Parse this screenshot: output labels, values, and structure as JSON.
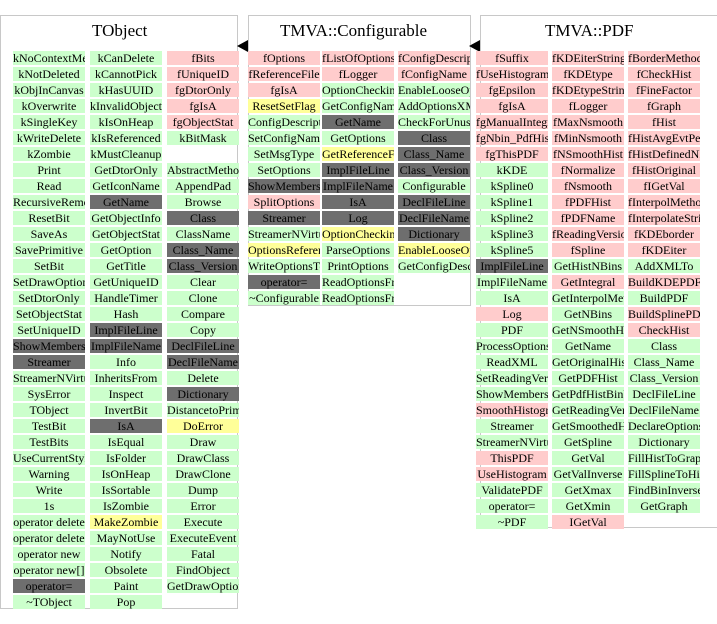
{
  "classes": [
    {
      "id": "tobject",
      "title": "TObject",
      "columns": [
        [
          {
            "t": "kNoContextMenu",
            "c": "g"
          },
          {
            "t": "kNotDeleted",
            "c": "g"
          },
          {
            "t": "kObjInCanvas",
            "c": "g"
          },
          {
            "t": "kOverwrite",
            "c": "g"
          },
          {
            "t": "kSingleKey",
            "c": "g"
          },
          {
            "t": "kWriteDelete",
            "c": "g"
          },
          {
            "t": "kZombie",
            "c": "g"
          },
          {
            "t": "Print",
            "c": "g"
          },
          {
            "t": "Read",
            "c": "g"
          },
          {
            "t": "RecursiveRemove",
            "c": "g"
          },
          {
            "t": "ResetBit",
            "c": "g"
          },
          {
            "t": "SaveAs",
            "c": "g"
          },
          {
            "t": "SavePrimitive",
            "c": "g"
          },
          {
            "t": "SetBit",
            "c": "g"
          },
          {
            "t": "SetDrawOption",
            "c": "g"
          },
          {
            "t": "SetDtorOnly",
            "c": "g"
          },
          {
            "t": "SetObjectStat",
            "c": "g"
          },
          {
            "t": "SetUniqueID",
            "c": "g"
          },
          {
            "t": "ShowMembers",
            "c": "k"
          },
          {
            "t": "Streamer",
            "c": "k"
          },
          {
            "t": "StreamerNVirtual",
            "c": "g"
          },
          {
            "t": "SysError",
            "c": "g"
          },
          {
            "t": "TObject",
            "c": "g"
          },
          {
            "t": "TestBit",
            "c": "g"
          },
          {
            "t": "TestBits",
            "c": "g"
          },
          {
            "t": "UseCurrentStyle",
            "c": "g"
          },
          {
            "t": "Warning",
            "c": "g"
          },
          {
            "t": "Write",
            "c": "g"
          },
          {
            "t": "1s",
            "c": "g"
          },
          {
            "t": "operator delete",
            "c": "g"
          },
          {
            "t": "operator delete[]",
            "c": "g"
          },
          {
            "t": "operator new",
            "c": "g"
          },
          {
            "t": "operator new[]",
            "c": "g"
          },
          {
            "t": "operator=",
            "c": "k"
          },
          {
            "t": "~TObject",
            "c": "g"
          }
        ],
        [
          {
            "t": "kCanDelete",
            "c": "g"
          },
          {
            "t": "kCannotPick",
            "c": "g"
          },
          {
            "t": "kHasUUID",
            "c": "g"
          },
          {
            "t": "kInvalidObject",
            "c": "g"
          },
          {
            "t": "kIsOnHeap",
            "c": "g"
          },
          {
            "t": "kIsReferenced",
            "c": "g"
          },
          {
            "t": "kMustCleanup",
            "c": "g"
          },
          {
            "t": "GetDtorOnly",
            "c": "g"
          },
          {
            "t": "GetIconName",
            "c": "g"
          },
          {
            "t": "GetName",
            "c": "k"
          },
          {
            "t": "GetObjectInfo",
            "c": "g"
          },
          {
            "t": "GetObjectStat",
            "c": "g"
          },
          {
            "t": "GetOption",
            "c": "g"
          },
          {
            "t": "GetTitle",
            "c": "g"
          },
          {
            "t": "GetUniqueID",
            "c": "g"
          },
          {
            "t": "HandleTimer",
            "c": "g"
          },
          {
            "t": "Hash",
            "c": "g"
          },
          {
            "t": "ImplFileLine",
            "c": "k"
          },
          {
            "t": "ImplFileName",
            "c": "k"
          },
          {
            "t": "Info",
            "c": "g"
          },
          {
            "t": "InheritsFrom",
            "c": "g"
          },
          {
            "t": "Inspect",
            "c": "g"
          },
          {
            "t": "InvertBit",
            "c": "g"
          },
          {
            "t": "IsA",
            "c": "k"
          },
          {
            "t": "IsEqual",
            "c": "g"
          },
          {
            "t": "IsFolder",
            "c": "g"
          },
          {
            "t": "IsOnHeap",
            "c": "g"
          },
          {
            "t": "IsSortable",
            "c": "g"
          },
          {
            "t": "IsZombie",
            "c": "g"
          },
          {
            "t": "MakeZombie",
            "c": "y"
          },
          {
            "t": "MayNotUse",
            "c": "g"
          },
          {
            "t": "Notify",
            "c": "g"
          },
          {
            "t": "Obsolete",
            "c": "g"
          },
          {
            "t": "Paint",
            "c": "g"
          },
          {
            "t": "Pop",
            "c": "g"
          }
        ],
        [
          {
            "t": "fBits",
            "c": "r"
          },
          {
            "t": "fUniqueID",
            "c": "r"
          },
          {
            "t": "fgDtorOnly",
            "c": "r"
          },
          {
            "t": "fgIsA",
            "c": "r"
          },
          {
            "t": "fgObjectStat",
            "c": "r"
          },
          {
            "t": "kBitMask",
            "c": "g"
          },
          {
            "t": "",
            "c": "n"
          },
          {
            "t": "AbstractMethod",
            "c": "g"
          },
          {
            "t": "AppendPad",
            "c": "g"
          },
          {
            "t": "Browse",
            "c": "g"
          },
          {
            "t": "Class",
            "c": "k"
          },
          {
            "t": "ClassName",
            "c": "g"
          },
          {
            "t": "Class_Name",
            "c": "k"
          },
          {
            "t": "Class_Version",
            "c": "k"
          },
          {
            "t": "Clear",
            "c": "g"
          },
          {
            "t": "Clone",
            "c": "g"
          },
          {
            "t": "Compare",
            "c": "g"
          },
          {
            "t": "Copy",
            "c": "g"
          },
          {
            "t": "DeclFileLine",
            "c": "k"
          },
          {
            "t": "DeclFileName",
            "c": "k"
          },
          {
            "t": "Delete",
            "c": "g"
          },
          {
            "t": "Dictionary",
            "c": "k"
          },
          {
            "t": "DistancetoPrimitive",
            "c": "g"
          },
          {
            "t": "DoError",
            "c": "y"
          },
          {
            "t": "Draw",
            "c": "g"
          },
          {
            "t": "DrawClass",
            "c": "g"
          },
          {
            "t": "DrawClone",
            "c": "g"
          },
          {
            "t": "Dump",
            "c": "g"
          },
          {
            "t": "Error",
            "c": "g"
          },
          {
            "t": "Execute",
            "c": "g"
          },
          {
            "t": "ExecuteEvent",
            "c": "g"
          },
          {
            "t": "Fatal",
            "c": "g"
          },
          {
            "t": "FindObject",
            "c": "g"
          },
          {
            "t": "GetDrawOption",
            "c": "g"
          }
        ]
      ]
    },
    {
      "id": "configurable",
      "title": "TMVA::Configurable",
      "columns": [
        [
          {
            "t": "fOptions",
            "c": "r"
          },
          {
            "t": "fReferenceFile",
            "c": "r"
          },
          {
            "t": "fgIsA",
            "c": "r"
          },
          {
            "t": "ResetSetFlag",
            "c": "y"
          },
          {
            "t": "ConfigDescription",
            "c": "g"
          },
          {
            "t": "SetConfigName",
            "c": "g"
          },
          {
            "t": "SetMsgType",
            "c": "g"
          },
          {
            "t": "SetOptions",
            "c": "g"
          },
          {
            "t": "ShowMembers",
            "c": "k"
          },
          {
            "t": "SplitOptions",
            "c": "r"
          },
          {
            "t": "Streamer",
            "c": "k"
          },
          {
            "t": "StreamerNVirtual",
            "c": "g"
          },
          {
            "t": "OptionsReferenceFile",
            "c": "y"
          },
          {
            "t": "WriteOptionsToStream",
            "c": "g"
          },
          {
            "t": "operator=",
            "c": "k"
          },
          {
            "t": "~Configurable",
            "c": "g"
          }
        ],
        [
          {
            "t": "fListOfOptions",
            "c": "r"
          },
          {
            "t": "fLogger",
            "c": "r"
          },
          {
            "t": "OptionChecking",
            "c": "g"
          },
          {
            "t": "GetConfigName",
            "c": "g"
          },
          {
            "t": "GetName",
            "c": "k"
          },
          {
            "t": "GetOptions",
            "c": "g"
          },
          {
            "t": "GetReferenceFile",
            "c": "y"
          },
          {
            "t": "ImplFileLine",
            "c": "k"
          },
          {
            "t": "ImplFileName",
            "c": "k"
          },
          {
            "t": "IsA",
            "c": "k"
          },
          {
            "t": "Log",
            "c": "k"
          },
          {
            "t": "OptionChecking",
            "c": "y"
          },
          {
            "t": "ParseOptions",
            "c": "g"
          },
          {
            "t": "PrintOptions",
            "c": "g"
          },
          {
            "t": "ReadOptionsFromStream",
            "c": "g"
          },
          {
            "t": "ReadOptionsFromXML",
            "c": "g"
          }
        ],
        [
          {
            "t": "fConfigDescription",
            "c": "r"
          },
          {
            "t": "fConfigName",
            "c": "r"
          },
          {
            "t": "EnableLooseOptions",
            "c": "g"
          },
          {
            "t": "AddOptionsXMLTo",
            "c": "g"
          },
          {
            "t": "CheckForUnusedOptions",
            "c": "g"
          },
          {
            "t": "Class",
            "c": "k"
          },
          {
            "t": "Class_Name",
            "c": "k"
          },
          {
            "t": "Class_Version",
            "c": "k"
          },
          {
            "t": "Configurable",
            "c": "g"
          },
          {
            "t": "DeclFileLine",
            "c": "k"
          },
          {
            "t": "DeclFileName",
            "c": "k"
          },
          {
            "t": "Dictionary",
            "c": "k"
          },
          {
            "t": "EnableLooseOptions",
            "c": "y"
          },
          {
            "t": "GetConfigDescription",
            "c": "g"
          }
        ]
      ]
    },
    {
      "id": "pdf",
      "title": "TMVA::PDF",
      "columns": [
        [
          {
            "t": "fSuffix",
            "c": "r"
          },
          {
            "t": "fUseHistogram",
            "c": "r"
          },
          {
            "t": "fgEpsilon",
            "c": "r"
          },
          {
            "t": "fgIsA",
            "c": "r"
          },
          {
            "t": "fgManualIntegration",
            "c": "r"
          },
          {
            "t": "fgNbin_PdfHist",
            "c": "r"
          },
          {
            "t": "fgThisPDF",
            "c": "r"
          },
          {
            "t": "kKDE",
            "c": "g"
          },
          {
            "t": "kSpline0",
            "c": "g"
          },
          {
            "t": "kSpline1",
            "c": "g"
          },
          {
            "t": "kSpline2",
            "c": "g"
          },
          {
            "t": "kSpline3",
            "c": "g"
          },
          {
            "t": "kSpline5",
            "c": "g"
          },
          {
            "t": "ImplFileLine",
            "c": "k"
          },
          {
            "t": "ImplFileName",
            "c": "g"
          },
          {
            "t": "IsA",
            "c": "g"
          },
          {
            "t": "Log",
            "c": "r"
          },
          {
            "t": "PDF",
            "c": "g"
          },
          {
            "t": "ProcessOptions",
            "c": "g"
          },
          {
            "t": "ReadXML",
            "c": "g"
          },
          {
            "t": "SetReadingVersion",
            "c": "g"
          },
          {
            "t": "ShowMembers",
            "c": "g"
          },
          {
            "t": "SmoothHistogram",
            "c": "r"
          },
          {
            "t": "Streamer",
            "c": "g"
          },
          {
            "t": "StreamerNVirtual",
            "c": "g"
          },
          {
            "t": "ThisPDF",
            "c": "r"
          },
          {
            "t": "UseHistogram",
            "c": "r"
          },
          {
            "t": "ValidatePDF",
            "c": "g"
          },
          {
            "t": "operator=",
            "c": "g"
          },
          {
            "t": "~PDF",
            "c": "g"
          }
        ],
        [
          {
            "t": "fKDEiterString",
            "c": "r"
          },
          {
            "t": "fKDEtype",
            "c": "r"
          },
          {
            "t": "fKDEtypeString",
            "c": "r"
          },
          {
            "t": "fLogger",
            "c": "r"
          },
          {
            "t": "fMaxNsmooth",
            "c": "r"
          },
          {
            "t": "fMinNsmooth",
            "c": "r"
          },
          {
            "t": "fNSmoothHist",
            "c": "r"
          },
          {
            "t": "fNormalize",
            "c": "r"
          },
          {
            "t": "fNsmooth",
            "c": "r"
          },
          {
            "t": "fPDFHist",
            "c": "r"
          },
          {
            "t": "fPDFName",
            "c": "r"
          },
          {
            "t": "fReadingVersion",
            "c": "r"
          },
          {
            "t": "fSpline",
            "c": "r"
          },
          {
            "t": "GetHistNBins",
            "c": "g"
          },
          {
            "t": "GetIntegral",
            "c": "r"
          },
          {
            "t": "GetInterpolMethod",
            "c": "g"
          },
          {
            "t": "GetNBins",
            "c": "g"
          },
          {
            "t": "GetNSmoothHist",
            "c": "g"
          },
          {
            "t": "GetName",
            "c": "g"
          },
          {
            "t": "GetOriginalHist",
            "c": "g"
          },
          {
            "t": "GetPDFHist",
            "c": "g"
          },
          {
            "t": "GetPdfHistBinWidth",
            "c": "g"
          },
          {
            "t": "GetReadingVersion",
            "c": "g"
          },
          {
            "t": "GetSmoothedHist",
            "c": "g"
          },
          {
            "t": "GetSpline",
            "c": "g"
          },
          {
            "t": "GetVal",
            "c": "g"
          },
          {
            "t": "GetValInverse",
            "c": "g"
          },
          {
            "t": "GetXmax",
            "c": "g"
          },
          {
            "t": "GetXmin",
            "c": "g"
          },
          {
            "t": "IGetVal",
            "c": "r"
          }
        ],
        [
          {
            "t": "fBorderMethodString",
            "c": "r"
          },
          {
            "t": "fCheckHist",
            "c": "r"
          },
          {
            "t": "fFineFactor",
            "c": "r"
          },
          {
            "t": "fGraph",
            "c": "r"
          },
          {
            "t": "fHist",
            "c": "r"
          },
          {
            "t": "fHistAvgEvtPerBin",
            "c": "r"
          },
          {
            "t": "fHistDefinedNBins",
            "c": "r"
          },
          {
            "t": "fHistOriginal",
            "c": "r"
          },
          {
            "t": "fIGetVal",
            "c": "r"
          },
          {
            "t": "fInterpolMethod",
            "c": "r"
          },
          {
            "t": "fInterpolateString",
            "c": "r"
          },
          {
            "t": "fKDEborder",
            "c": "r"
          },
          {
            "t": "fKDEiter",
            "c": "r"
          },
          {
            "t": "AddXMLTo",
            "c": "g"
          },
          {
            "t": "BuildKDEPDF",
            "c": "r"
          },
          {
            "t": "BuildPDF",
            "c": "g"
          },
          {
            "t": "BuildSplinePDF",
            "c": "r"
          },
          {
            "t": "CheckHist",
            "c": "r"
          },
          {
            "t": "Class",
            "c": "g"
          },
          {
            "t": "Class_Name",
            "c": "g"
          },
          {
            "t": "Class_Version",
            "c": "g"
          },
          {
            "t": "DeclFileLine",
            "c": "g"
          },
          {
            "t": "DeclFileName",
            "c": "g"
          },
          {
            "t": "DeclareOptions",
            "c": "g"
          },
          {
            "t": "Dictionary",
            "c": "g"
          },
          {
            "t": "FillHistToGraph",
            "c": "g"
          },
          {
            "t": "FillSplineToHist",
            "c": "g"
          },
          {
            "t": "FindBinInverse",
            "c": "g"
          },
          {
            "t": "GetGraph",
            "c": "g"
          }
        ]
      ]
    }
  ],
  "arrows": [
    {
      "from": "configurable",
      "to": "tobject"
    },
    {
      "from": "pdf",
      "to": "configurable"
    }
  ]
}
